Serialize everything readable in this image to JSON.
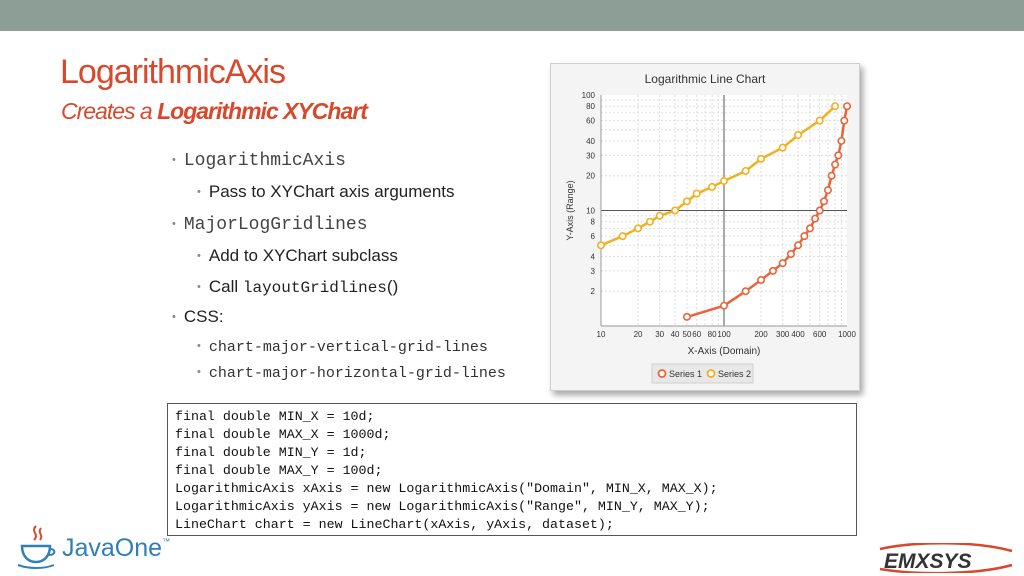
{
  "slide": {
    "title": "LogarithmicAxis",
    "subtitle_prefix": "Creates a ",
    "subtitle_bold": "Logarithmic XYChart"
  },
  "bullets": {
    "b1": "LogarithmicAxis",
    "b1_sub": "Pass to XYChart axis arguments",
    "b2": "MajorLogGridlines",
    "b2_sub1": "Add to XYChart subclass",
    "b2_sub2_prefix": "Call ",
    "b2_sub2_code": "layoutGridlines",
    "b2_sub2_suffix": "()",
    "b3": "CSS:",
    "b3_sub1": "chart-major-vertical-grid-lines",
    "b3_sub2": "chart-major-horizontal-grid-lines"
  },
  "code": [
    "final double MIN_X = 10d;",
    "final double MAX_X = 1000d;",
    "final double MIN_Y = 1d;",
    "final double MAX_Y = 100d;",
    "LogarithmicAxis xAxis = new LogarithmicAxis(\"Domain\", MIN_X, MAX_X);",
    "LogarithmicAxis yAxis = new LogarithmicAxis(\"Range\", MIN_Y, MAX_Y);",
    "LineChart chart = new LineChart(xAxis, yAxis, dataset);"
  ],
  "logos": {
    "javaone": "JavaOne",
    "javaone_tm": "™",
    "emxsys": "EMXSYS"
  },
  "chart_data": {
    "type": "line",
    "title": "Logarithmic Line Chart",
    "xlabel": "X-Axis (Domain)",
    "ylabel": "Y-Axis (Range)",
    "x_scale": "log",
    "y_scale": "log",
    "xlim": [
      10,
      1000
    ],
    "ylim": [
      1,
      100
    ],
    "x_ticks": [
      10,
      20,
      30,
      40,
      50,
      60,
      80,
      100,
      200,
      300,
      400,
      600,
      1000
    ],
    "x_tick_labels": [
      "10",
      "20",
      "30",
      "40",
      "50",
      "60",
      "80",
      "100",
      "200",
      "300",
      "400",
      "600",
      "1000"
    ],
    "y_ticks": [
      2,
      3,
      4,
      6,
      8,
      10,
      20,
      30,
      40,
      60,
      80,
      100
    ],
    "y_tick_labels": [
      "2",
      "3",
      "4",
      "6",
      "8",
      "10",
      "20",
      "30",
      "40",
      "60",
      "80",
      "100"
    ],
    "grid": true,
    "legend_position": "bottom",
    "series": [
      {
        "name": "Series 1",
        "color": "#e8643a",
        "x": [
          50,
          100,
          150,
          200,
          250,
          300,
          350,
          400,
          450,
          500,
          550,
          600,
          650,
          700,
          750,
          800,
          850,
          900,
          950,
          1000
        ],
        "y": [
          1.2,
          1.5,
          2.0,
          2.5,
          3.0,
          3.5,
          4.2,
          5.0,
          6.0,
          7.0,
          8.5,
          10.0,
          12.0,
          15.0,
          20.0,
          25.0,
          30.0,
          40.0,
          60.0,
          80.0
        ]
      },
      {
        "name": "Series 2",
        "color": "#f0b020",
        "x": [
          10,
          15,
          20,
          25,
          30,
          40,
          50,
          60,
          80,
          100,
          150,
          200,
          300,
          400,
          600,
          800
        ],
        "y": [
          5,
          6,
          7,
          8,
          9,
          10,
          12,
          14,
          16,
          18,
          22,
          28,
          35,
          45,
          60,
          80
        ]
      }
    ]
  }
}
